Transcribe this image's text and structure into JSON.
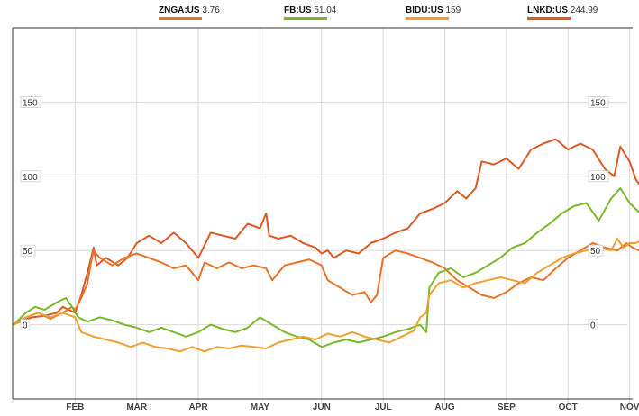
{
  "legend": [
    {
      "symbol": "ZNGA:US",
      "value": "3.76",
      "color": "#e8732a"
    },
    {
      "symbol": "FB:US",
      "value": "51.04",
      "color": "#7ab829"
    },
    {
      "symbol": "BIDU:US",
      "value": "159",
      "color": "#f0a030"
    },
    {
      "symbol": "LNKD:US",
      "value": "244.99",
      "color": "#dc5a24"
    }
  ],
  "chart_data": {
    "type": "line",
    "x_unit": "month index (0 = Jan 1, 10 = Nov 1)",
    "xlim": [
      0,
      10.05
    ],
    "ylim": [
      -50,
      200
    ],
    "yticks": [
      0,
      50,
      100,
      150
    ],
    "months": [
      "FEB",
      "MAR",
      "APR",
      "MAY",
      "JUN",
      "JUL",
      "AUG",
      "SEP",
      "OCT",
      "NOV"
    ],
    "grid": true,
    "legend_position": "top",
    "series": [
      {
        "name": "LNKD:US",
        "color": "#dc5a24",
        "points": [
          [
            0,
            0
          ],
          [
            0.15,
            3
          ],
          [
            0.3,
            5
          ],
          [
            0.5,
            6
          ],
          [
            0.7,
            8
          ],
          [
            0.8,
            12
          ],
          [
            0.9,
            10
          ],
          [
            1.0,
            8
          ],
          [
            1.1,
            20
          ],
          [
            1.2,
            35
          ],
          [
            1.3,
            52
          ],
          [
            1.35,
            40
          ],
          [
            1.5,
            45
          ],
          [
            1.7,
            40
          ],
          [
            1.85,
            45
          ],
          [
            2.0,
            55
          ],
          [
            2.2,
            60
          ],
          [
            2.4,
            55
          ],
          [
            2.6,
            62
          ],
          [
            2.8,
            55
          ],
          [
            3.0,
            45
          ],
          [
            3.2,
            62
          ],
          [
            3.4,
            60
          ],
          [
            3.6,
            58
          ],
          [
            3.8,
            68
          ],
          [
            4.0,
            65
          ],
          [
            4.1,
            75
          ],
          [
            4.15,
            60
          ],
          [
            4.3,
            58
          ],
          [
            4.5,
            60
          ],
          [
            4.7,
            55
          ],
          [
            4.9,
            52
          ],
          [
            5.0,
            48
          ],
          [
            5.1,
            50
          ],
          [
            5.2,
            45
          ],
          [
            5.4,
            50
          ],
          [
            5.6,
            48
          ],
          [
            5.8,
            55
          ],
          [
            6.0,
            58
          ],
          [
            6.2,
            62
          ],
          [
            6.4,
            65
          ],
          [
            6.6,
            75
          ],
          [
            6.8,
            78
          ],
          [
            7.0,
            82
          ],
          [
            7.2,
            90
          ],
          [
            7.35,
            85
          ],
          [
            7.5,
            92
          ],
          [
            7.6,
            110
          ],
          [
            7.8,
            108
          ],
          [
            8.0,
            112
          ],
          [
            8.2,
            105
          ],
          [
            8.4,
            118
          ],
          [
            8.6,
            122
          ],
          [
            8.8,
            125
          ],
          [
            9.0,
            118
          ],
          [
            9.2,
            122
          ],
          [
            9.4,
            118
          ],
          [
            9.6,
            105
          ],
          [
            9.75,
            100
          ],
          [
            9.85,
            120
          ],
          [
            10.0,
            110
          ],
          [
            10.1,
            98
          ],
          [
            10.15,
            95
          ]
        ]
      },
      {
        "name": "ZNGA:US",
        "color": "#e8732a",
        "points": [
          [
            0,
            0
          ],
          [
            0.2,
            5
          ],
          [
            0.4,
            8
          ],
          [
            0.6,
            4
          ],
          [
            0.8,
            8
          ],
          [
            0.95,
            12
          ],
          [
            1.0,
            10
          ],
          [
            1.1,
            18
          ],
          [
            1.2,
            28
          ],
          [
            1.25,
            40
          ],
          [
            1.3,
            50
          ],
          [
            1.4,
            45
          ],
          [
            1.6,
            40
          ],
          [
            1.8,
            45
          ],
          [
            2.0,
            48
          ],
          [
            2.2,
            45
          ],
          [
            2.4,
            42
          ],
          [
            2.6,
            38
          ],
          [
            2.8,
            40
          ],
          [
            3.0,
            30
          ],
          [
            3.1,
            42
          ],
          [
            3.3,
            38
          ],
          [
            3.5,
            42
          ],
          [
            3.7,
            38
          ],
          [
            3.9,
            40
          ],
          [
            4.1,
            38
          ],
          [
            4.2,
            30
          ],
          [
            4.4,
            40
          ],
          [
            4.6,
            42
          ],
          [
            4.8,
            44
          ],
          [
            5.0,
            40
          ],
          [
            5.1,
            30
          ],
          [
            5.3,
            25
          ],
          [
            5.5,
            20
          ],
          [
            5.7,
            22
          ],
          [
            5.8,
            15
          ],
          [
            5.9,
            20
          ],
          [
            6.0,
            45
          ],
          [
            6.2,
            50
          ],
          [
            6.4,
            48
          ],
          [
            6.6,
            45
          ],
          [
            6.8,
            42
          ],
          [
            7.0,
            38
          ],
          [
            7.2,
            30
          ],
          [
            7.4,
            25
          ],
          [
            7.6,
            20
          ],
          [
            7.8,
            18
          ],
          [
            8.0,
            22
          ],
          [
            8.2,
            28
          ],
          [
            8.4,
            32
          ],
          [
            8.6,
            30
          ],
          [
            8.8,
            38
          ],
          [
            9.0,
            45
          ],
          [
            9.2,
            50
          ],
          [
            9.4,
            55
          ],
          [
            9.6,
            52
          ],
          [
            9.8,
            50
          ],
          [
            9.95,
            55
          ],
          [
            10.05,
            52
          ],
          [
            10.15,
            50
          ]
        ]
      },
      {
        "name": "FB:US",
        "color": "#7ab829",
        "points": [
          [
            0,
            0
          ],
          [
            0.2,
            8
          ],
          [
            0.35,
            12
          ],
          [
            0.5,
            10
          ],
          [
            0.7,
            15
          ],
          [
            0.85,
            18
          ],
          [
            0.95,
            12
          ],
          [
            1.05,
            5
          ],
          [
            1.2,
            2
          ],
          [
            1.4,
            5
          ],
          [
            1.6,
            3
          ],
          [
            1.8,
            0
          ],
          [
            2.0,
            -2
          ],
          [
            2.2,
            -5
          ],
          [
            2.4,
            -2
          ],
          [
            2.6,
            -5
          ],
          [
            2.8,
            -8
          ],
          [
            3.0,
            -5
          ],
          [
            3.2,
            0
          ],
          [
            3.4,
            -3
          ],
          [
            3.6,
            -5
          ],
          [
            3.8,
            -2
          ],
          [
            4.0,
            5
          ],
          [
            4.2,
            0
          ],
          [
            4.4,
            -5
          ],
          [
            4.6,
            -8
          ],
          [
            4.8,
            -10
          ],
          [
            5.0,
            -15
          ],
          [
            5.2,
            -12
          ],
          [
            5.4,
            -10
          ],
          [
            5.6,
            -12
          ],
          [
            5.8,
            -10
          ],
          [
            6.0,
            -8
          ],
          [
            6.2,
            -5
          ],
          [
            6.4,
            -3
          ],
          [
            6.6,
            0
          ],
          [
            6.7,
            -5
          ],
          [
            6.75,
            25
          ],
          [
            6.9,
            35
          ],
          [
            7.1,
            38
          ],
          [
            7.3,
            32
          ],
          [
            7.5,
            35
          ],
          [
            7.7,
            40
          ],
          [
            7.9,
            45
          ],
          [
            8.1,
            52
          ],
          [
            8.3,
            55
          ],
          [
            8.5,
            62
          ],
          [
            8.7,
            68
          ],
          [
            8.9,
            75
          ],
          [
            9.1,
            80
          ],
          [
            9.3,
            82
          ],
          [
            9.5,
            70
          ],
          [
            9.7,
            85
          ],
          [
            9.85,
            92
          ],
          [
            10.0,
            82
          ],
          [
            10.1,
            78
          ],
          [
            10.15,
            76
          ]
        ]
      },
      {
        "name": "BIDU:US",
        "color": "#f0a030",
        "points": [
          [
            0,
            0
          ],
          [
            0.2,
            5
          ],
          [
            0.4,
            8
          ],
          [
            0.6,
            5
          ],
          [
            0.8,
            8
          ],
          [
            1.0,
            5
          ],
          [
            1.1,
            -5
          ],
          [
            1.3,
            -8
          ],
          [
            1.5,
            -10
          ],
          [
            1.7,
            -12
          ],
          [
            1.9,
            -15
          ],
          [
            2.1,
            -12
          ],
          [
            2.3,
            -15
          ],
          [
            2.5,
            -16
          ],
          [
            2.7,
            -18
          ],
          [
            2.9,
            -15
          ],
          [
            3.1,
            -18
          ],
          [
            3.3,
            -15
          ],
          [
            3.5,
            -16
          ],
          [
            3.7,
            -14
          ],
          [
            3.9,
            -15
          ],
          [
            4.1,
            -16
          ],
          [
            4.3,
            -12
          ],
          [
            4.5,
            -10
          ],
          [
            4.7,
            -8
          ],
          [
            4.9,
            -10
          ],
          [
            5.1,
            -6
          ],
          [
            5.3,
            -8
          ],
          [
            5.5,
            -5
          ],
          [
            5.7,
            -8
          ],
          [
            5.9,
            -10
          ],
          [
            6.1,
            -12
          ],
          [
            6.3,
            -8
          ],
          [
            6.5,
            -4
          ],
          [
            6.6,
            5
          ],
          [
            6.7,
            8
          ],
          [
            6.75,
            20
          ],
          [
            6.9,
            28
          ],
          [
            7.1,
            30
          ],
          [
            7.3,
            25
          ],
          [
            7.5,
            28
          ],
          [
            7.7,
            30
          ],
          [
            7.9,
            32
          ],
          [
            8.1,
            30
          ],
          [
            8.3,
            28
          ],
          [
            8.5,
            35
          ],
          [
            8.7,
            40
          ],
          [
            8.9,
            45
          ],
          [
            9.1,
            48
          ],
          [
            9.3,
            50
          ],
          [
            9.5,
            52
          ],
          [
            9.7,
            50
          ],
          [
            9.8,
            58
          ],
          [
            9.9,
            52
          ],
          [
            10.0,
            55
          ],
          [
            10.1,
            55
          ],
          [
            10.15,
            56
          ]
        ]
      }
    ]
  }
}
